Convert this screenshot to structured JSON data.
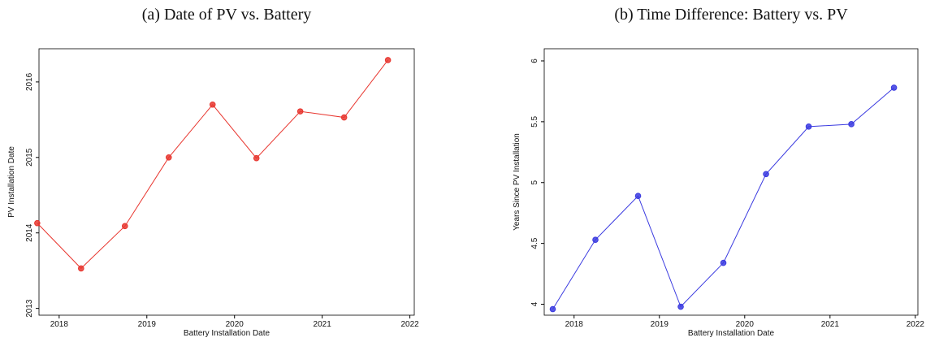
{
  "chart_data": [
    {
      "type": "line",
      "title": "(a) Date of PV vs. Battery",
      "xlabel": "Battery Installation Date",
      "ylabel": "PV Installation Date",
      "x": [
        2017.75,
        2018.25,
        2018.75,
        2019.25,
        2019.75,
        2020.25,
        2020.75,
        2021.25,
        2021.75
      ],
      "series": [
        {
          "name": "PV Installation Date",
          "color": "#e8362f",
          "values": [
            2014.13,
            2013.53,
            2014.09,
            2015.0,
            2015.7,
            2014.99,
            2015.61,
            2015.53,
            2016.29
          ]
        }
      ],
      "xlim": [
        2017.77,
        2022.05
      ],
      "xticks": [
        2018,
        2019,
        2020,
        2021,
        2022
      ],
      "ylim": [
        2012.91,
        2016.44
      ],
      "yticks": [
        2013,
        2014,
        2015,
        2016
      ]
    },
    {
      "type": "line",
      "title": "(b) Time Difference: Battery vs. PV",
      "xlabel": "Battery Installation Date",
      "ylabel": "Years Since PV Installation",
      "x": [
        2017.75,
        2018.25,
        2018.75,
        2019.25,
        2019.75,
        2020.25,
        2020.75,
        2021.25,
        2021.75
      ],
      "series": [
        {
          "name": "Years Since PV Installation",
          "color": "#3a3ae0",
          "values": [
            3.96,
            4.53,
            4.89,
            3.98,
            4.34,
            5.07,
            5.46,
            5.48,
            5.78
          ]
        }
      ],
      "xlim": [
        2017.65,
        2022.03
      ],
      "xticks": [
        2018,
        2019,
        2020,
        2021,
        2022
      ],
      "ylim": [
        3.91,
        6.1
      ],
      "yticks": [
        4,
        4.5,
        5,
        5.5,
        6
      ]
    }
  ]
}
